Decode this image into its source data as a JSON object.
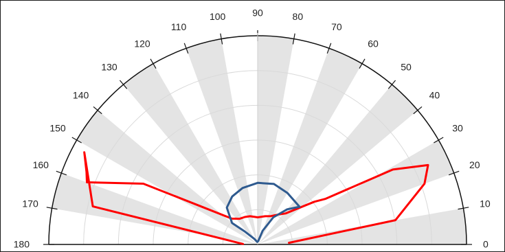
{
  "chart_data": {
    "type": "polar",
    "subtype": "half-polar (0 to 180 degrees)",
    "title": "",
    "theta_range": [
      0,
      180
    ],
    "theta_tick_labels": [
      "0",
      "10",
      "20",
      "30",
      "40",
      "50",
      "60",
      "70",
      "80",
      "90",
      "100",
      "110",
      "120",
      "130",
      "140",
      "150",
      "160",
      "170",
      "180"
    ],
    "radial_grid": true,
    "radial_gridlines": 6,
    "radial_tick_labels_visible": false,
    "alternating_sector_shading": true,
    "colors": {
      "frame": "#1a1a1a",
      "axis": "#111111",
      "grid": "#d9d9d9",
      "shade": "#e4e4e4"
    },
    "series": [
      {
        "color": "#ff0000",
        "line_width": 3,
        "points": [
          {
            "theta": 3,
            "r": 0.15
          },
          {
            "theta": 10,
            "r": 0.67
          },
          {
            "theta": 20,
            "r": 0.85
          },
          {
            "theta": 25,
            "r": 0.9
          },
          {
            "theta": 29,
            "r": 0.74
          },
          {
            "theta": 34,
            "r": 0.39
          },
          {
            "theta": 37,
            "r": 0.34
          },
          {
            "theta": 48,
            "r": 0.2
          },
          {
            "theta": 55,
            "r": 0.175
          },
          {
            "theta": 65,
            "r": 0.15
          },
          {
            "theta": 75,
            "r": 0.14
          },
          {
            "theta": 90,
            "r": 0.13
          },
          {
            "theta": 105,
            "r": 0.14
          },
          {
            "theta": 115,
            "r": 0.145
          },
          {
            "theta": 125,
            "r": 0.15
          },
          {
            "theta": 135,
            "r": 0.175
          },
          {
            "theta": 145,
            "r": 0.3
          },
          {
            "theta": 152,
            "r": 0.62
          },
          {
            "theta": 160,
            "r": 0.87
          },
          {
            "theta": 157,
            "r": 0.89
          },
          {
            "theta": 152,
            "r": 0.94
          },
          {
            "theta": 167,
            "r": 0.81
          },
          {
            "theta": 178,
            "r": 0.07
          }
        ]
      },
      {
        "color": "#2e5a8f",
        "line_width": 3,
        "points": [
          {
            "theta": 80,
            "r": 0.016
          },
          {
            "theta": 70,
            "r": 0.07
          },
          {
            "theta": 60,
            "r": 0.15
          },
          {
            "theta": 50,
            "r": 0.22
          },
          {
            "theta": 42,
            "r": 0.27
          },
          {
            "theta": 60,
            "r": 0.285
          },
          {
            "theta": 75,
            "r": 0.3
          },
          {
            "theta": 90,
            "r": 0.295
          },
          {
            "theta": 105,
            "r": 0.28
          },
          {
            "theta": 118,
            "r": 0.26
          },
          {
            "theta": 130,
            "r": 0.23
          },
          {
            "theta": 140,
            "r": 0.16
          },
          {
            "theta": 135,
            "r": 0.09
          },
          {
            "theta": 120,
            "r": 0.03
          },
          {
            "theta": 100,
            "r": 0.012
          }
        ]
      }
    ]
  }
}
